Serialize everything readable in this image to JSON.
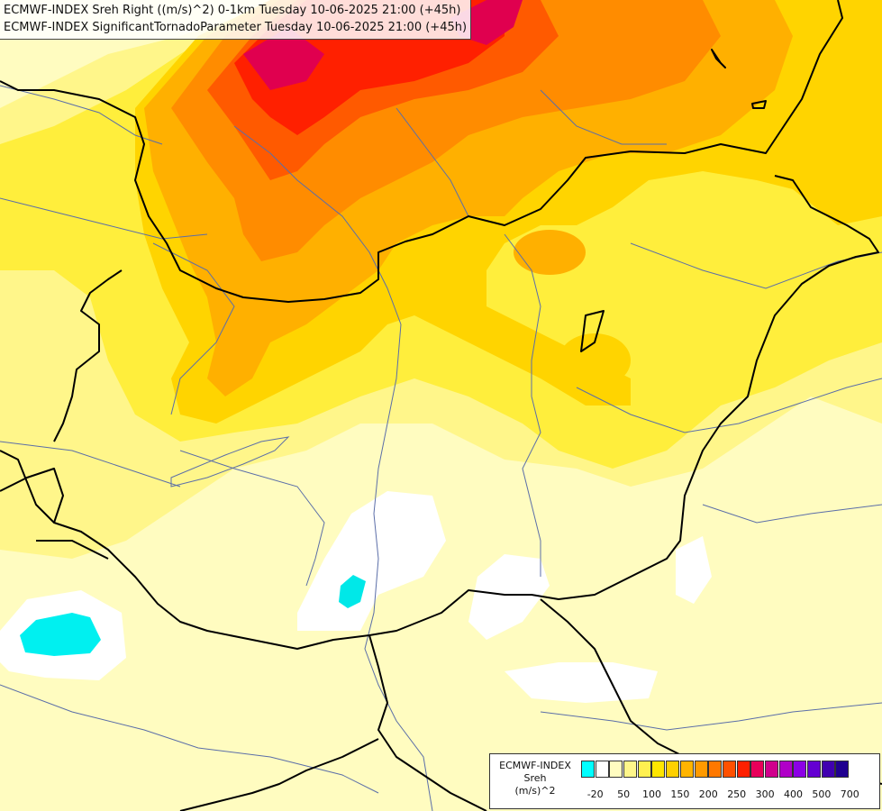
{
  "title": {
    "line1": "ECMWF-INDEX Sreh Right ((m/s)^2) 0-1km Tuesday 10-06-2025 21:00 (+45h)",
    "line2": "ECMWF-INDEX SignificantTornadoParameter Tuesday 10-06-2025 21:00 (+45h)"
  },
  "legend": {
    "line1": "ECMWF-INDEX",
    "line2": "Sreh",
    "line3": "(m/s)^2",
    "colors": [
      "#00ffff",
      "#ffffff",
      "#fffcc0",
      "#fff68a",
      "#fff050",
      "#ffe600",
      "#ffd000",
      "#ffb400",
      "#ff9a00",
      "#ff7800",
      "#ff5000",
      "#ff2000",
      "#e8005a",
      "#d0008c",
      "#b000c8",
      "#8c00e6",
      "#6400d2",
      "#4000b0",
      "#200090"
    ],
    "ticks": [
      {
        "label": "-20",
        "index": 1
      },
      {
        "label": "50",
        "index": 3
      },
      {
        "label": "100",
        "index": 5
      },
      {
        "label": "150",
        "index": 7
      },
      {
        "label": "200",
        "index": 9
      },
      {
        "label": "250",
        "index": 11
      },
      {
        "label": "300",
        "index": 13
      },
      {
        "label": "400",
        "index": 15
      },
      {
        "label": "500",
        "index": 17
      },
      {
        "label": "700",
        "index": 19
      }
    ]
  }
}
